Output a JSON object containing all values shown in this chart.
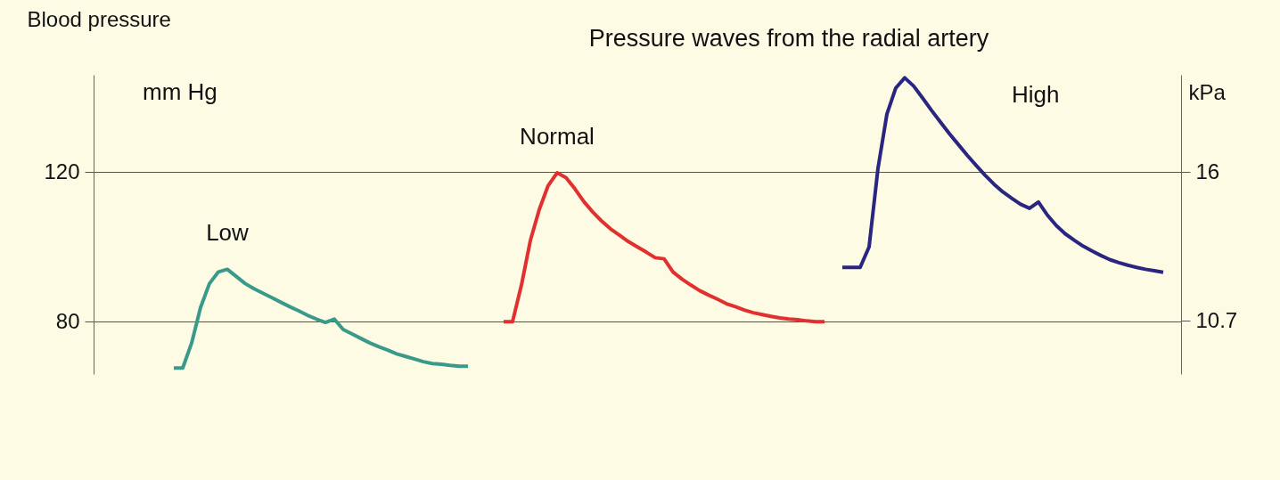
{
  "chart_data": {
    "type": "line",
    "title": "Pressure waves from the radial artery",
    "ylabel": "Blood pressure",
    "y2label": "kPa",
    "annotations": [
      "mm Hg"
    ],
    "categories": [
      null,
      null,
      null,
      null,
      null,
      null,
      null,
      null,
      null,
      null,
      null,
      null,
      null,
      null,
      null,
      null,
      null,
      null,
      null,
      null,
      null,
      null,
      null,
      null,
      null,
      null,
      null,
      null,
      null,
      null,
      null,
      null,
      null,
      null,
      null,
      null,
      null,
      null,
      null,
      null,
      null,
      null,
      null,
      null,
      null,
      null,
      null,
      null,
      null,
      null,
      null,
      null,
      null,
      null,
      null,
      null,
      null,
      null,
      null,
      null,
      null,
      null,
      null,
      null,
      null,
      null,
      null,
      null,
      null,
      null,
      null,
      null,
      null,
      null,
      null,
      null,
      null,
      null,
      null,
      null,
      null,
      null,
      null,
      null,
      null,
      null,
      null,
      null,
      null,
      null,
      null,
      null,
      null,
      null,
      null,
      null,
      null,
      null,
      null,
      null,
      null,
      null,
      null,
      null,
      null,
      null,
      null,
      null,
      null,
      null,
      null,
      null,
      null,
      null,
      null,
      null,
      null,
      null,
      null,
      null,
      null,
      null,
      null
    ],
    "series": [
      {
        "name": "Low",
        "color": "#3a9a8a",
        "values": [
          null,
          null,
          null,
          null,
          null,
          null,
          null,
          null,
          null,
          67.6,
          67.6,
          74.3,
          83.8,
          90.2,
          93.3,
          94.0,
          92.1,
          90.2,
          88.8,
          87.6,
          86.4,
          85.2,
          84.0,
          82.9,
          81.7,
          80.7,
          79.8,
          80.7,
          77.9,
          76.7,
          75.5,
          74.3,
          73.3,
          72.4,
          71.4,
          70.7,
          70.0,
          69.3,
          68.8,
          68.6,
          68.3,
          68.1,
          68.1,
          null,
          null,
          null,
          null,
          null,
          null,
          null,
          null,
          null,
          null,
          null,
          null,
          null,
          null,
          null,
          null,
          null,
          null,
          null,
          null,
          null,
          null,
          null,
          null,
          null,
          null,
          null,
          null,
          null,
          null,
          null,
          null,
          null,
          null,
          null,
          null,
          null,
          null,
          null,
          null,
          null,
          null,
          null,
          null,
          null,
          null,
          null,
          null,
          null,
          null,
          null,
          null,
          null,
          null,
          null,
          null,
          null,
          null,
          null,
          null,
          null,
          null,
          null,
          null,
          null,
          null,
          null,
          null,
          null,
          null,
          null,
          null,
          null,
          null,
          null,
          null,
          null,
          null,
          null,
          null
        ]
      },
      {
        "name": "Normal",
        "color": "#e03030",
        "values": [
          null,
          null,
          null,
          null,
          null,
          null,
          null,
          null,
          null,
          null,
          null,
          null,
          null,
          null,
          null,
          null,
          null,
          null,
          null,
          null,
          null,
          null,
          null,
          null,
          null,
          null,
          null,
          null,
          null,
          null,
          null,
          null,
          null,
          null,
          null,
          null,
          null,
          null,
          null,
          null,
          null,
          null,
          null,
          null,
          null,
          null,
          80,
          80,
          89.8,
          101.7,
          110,
          116.4,
          119.8,
          118.5,
          115.5,
          112.1,
          109.3,
          106.9,
          104.8,
          103.1,
          101.4,
          100,
          98.6,
          97.1,
          96.8,
          93.3,
          91.4,
          89.8,
          88.3,
          87.1,
          86,
          84.8,
          84,
          83.1,
          82.4,
          81.9,
          81.4,
          81,
          80.7,
          80.5,
          80.2,
          80,
          80,
          null,
          null,
          null,
          null,
          null,
          null,
          null,
          null,
          null,
          null,
          null,
          null,
          null,
          null,
          null,
          null,
          null,
          null,
          null,
          null,
          null,
          null,
          null,
          null,
          null,
          null,
          null,
          null,
          null,
          null,
          null,
          null,
          null,
          null,
          null,
          null,
          null,
          null,
          null,
          null
        ]
      },
      {
        "name": "High",
        "color": "#2a2580",
        "values": [
          null,
          null,
          null,
          null,
          null,
          null,
          null,
          null,
          null,
          null,
          null,
          null,
          null,
          null,
          null,
          null,
          null,
          null,
          null,
          null,
          null,
          null,
          null,
          null,
          null,
          null,
          null,
          null,
          null,
          null,
          null,
          null,
          null,
          null,
          null,
          null,
          null,
          null,
          null,
          null,
          null,
          null,
          null,
          null,
          null,
          null,
          null,
          null,
          null,
          null,
          null,
          null,
          null,
          null,
          null,
          null,
          null,
          null,
          null,
          null,
          null,
          null,
          null,
          null,
          null,
          null,
          null,
          null,
          null,
          null,
          null,
          null,
          null,
          null,
          null,
          null,
          null,
          null,
          null,
          null,
          null,
          null,
          null,
          null,
          94.5,
          94.5,
          94.5,
          100,
          121,
          135.5,
          142.5,
          145.2,
          143,
          139.8,
          136.5,
          133.4,
          130.3,
          127.4,
          124.5,
          121.8,
          119.2,
          116.8,
          114.7,
          113,
          111.4,
          110.3,
          112,
          108.5,
          105.7,
          103.5,
          101.8,
          100.2,
          98.9,
          97.7,
          96.6,
          95.8,
          95.1,
          94.5,
          94.0,
          93.6,
          93.2,
          null,
          null
        ]
      }
    ],
    "ylim": [
      66,
      146
    ],
    "yticks": [
      80,
      120
    ],
    "y2lim": [
      8.8,
      19.47
    ],
    "y2ticks": [
      {
        "value": 10.7,
        "label": "10.7"
      },
      16
    ],
    "grid": "y",
    "legend": false,
    "tick_labels": "y",
    "line_style": "solid",
    "marker": "none"
  }
}
